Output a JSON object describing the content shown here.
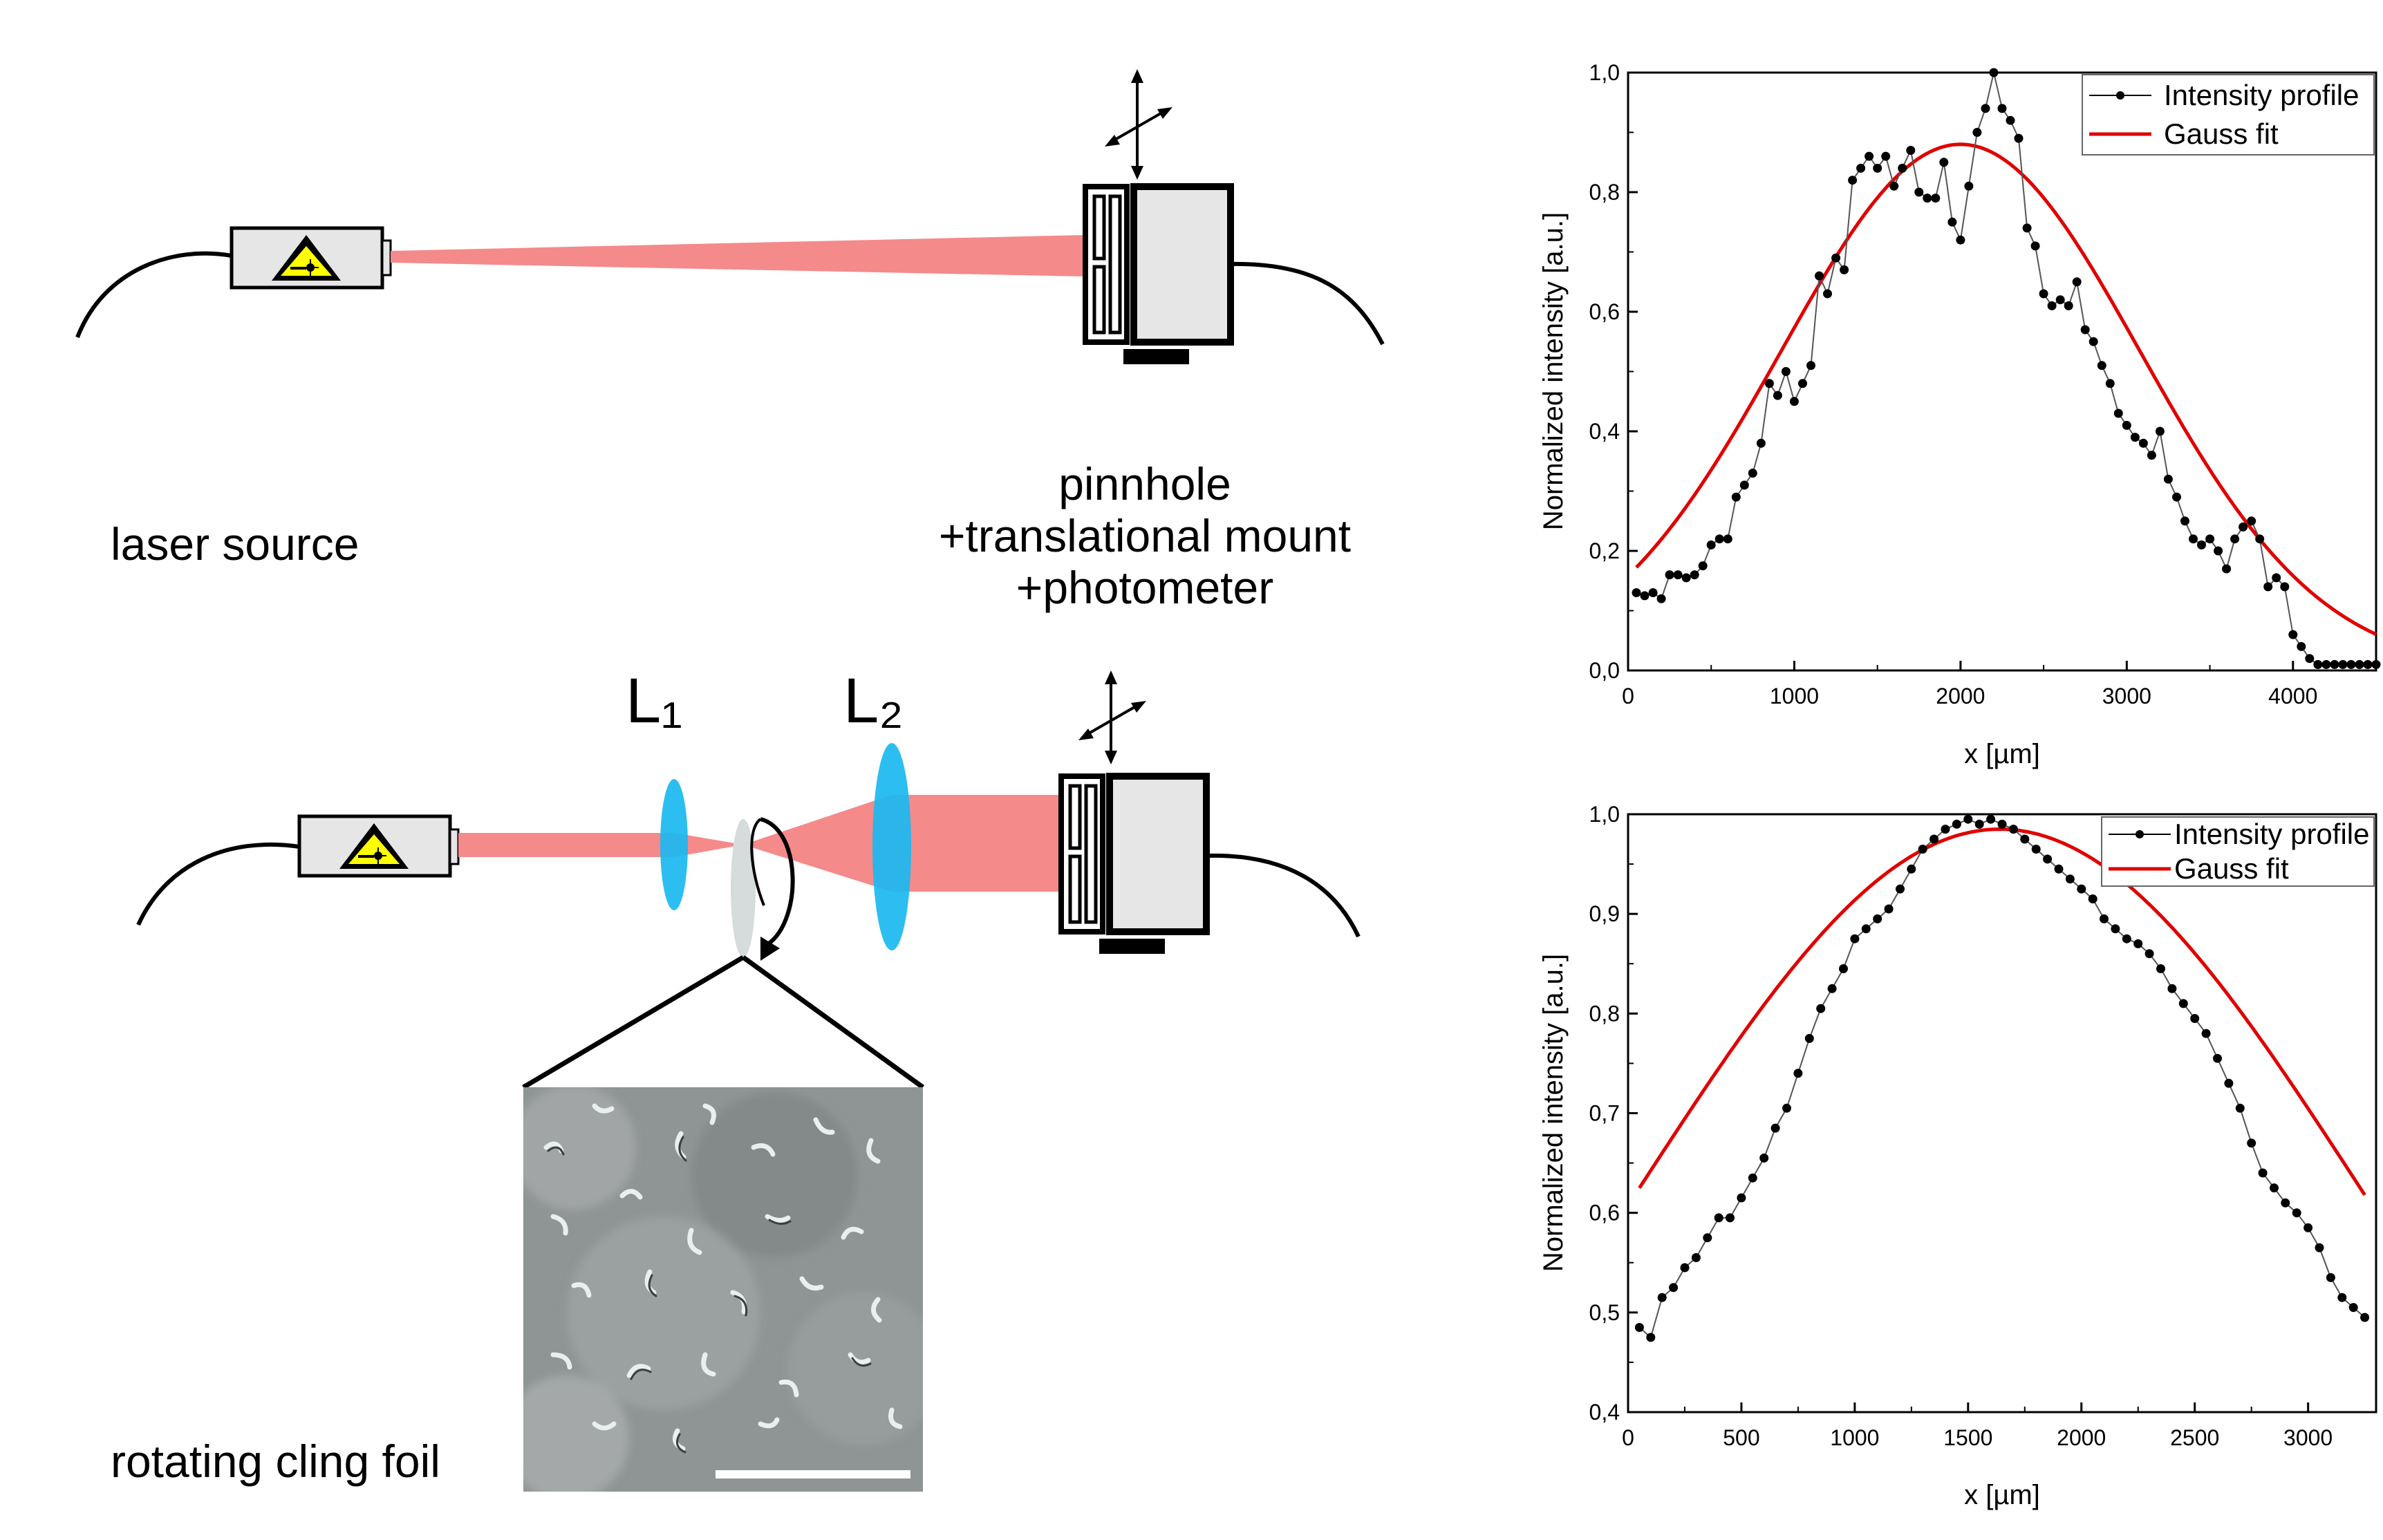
{
  "diagram": {
    "labels": {
      "laser_source": "laser source",
      "pinhole_line1": "pinnhole",
      "pinhole_line2": "+translational mount",
      "pinhole_line3": "+photometer",
      "lens1": "L₁",
      "lens2": "L₂",
      "foil": "rotating cling foil"
    },
    "colors": {
      "beam": "#f48a8a",
      "lens": "#1ab8f0",
      "laser_body": "#e6e6e6",
      "warning_yellow": "#ffff00",
      "foil": "#d6dcdc",
      "fit_red": "#e00000"
    },
    "icons": [
      "laser-warning-icon",
      "translation-arrows-icon",
      "rotation-arrow-icon"
    ]
  },
  "chart_data": [
    {
      "type": "line",
      "xlabel": "x [µm]",
      "ylabel": "Normalized intensity [a.u.]",
      "xlim": [
        0,
        4500
      ],
      "ylim": [
        0,
        1.0
      ],
      "xticks": [
        0,
        1000,
        2000,
        3000,
        4000
      ],
      "yticks": [
        0.0,
        0.2,
        0.4,
        0.6,
        0.8,
        1.0
      ],
      "ytick_labels": [
        "0,0",
        "0,2",
        "0,4",
        "0,6",
        "0,8",
        "1,0"
      ],
      "legend_position": "top-right",
      "series": [
        {
          "name": "Intensity profile",
          "style": "line-markers",
          "color": "#000000",
          "x": [
            50,
            100,
            150,
            200,
            250,
            300,
            350,
            400,
            450,
            500,
            550,
            600,
            650,
            700,
            750,
            800,
            850,
            900,
            950,
            1000,
            1050,
            1100,
            1150,
            1200,
            1250,
            1300,
            1350,
            1400,
            1450,
            1500,
            1550,
            1600,
            1650,
            1700,
            1750,
            1800,
            1850,
            1900,
            1950,
            2000,
            2050,
            2100,
            2150,
            2200,
            2250,
            2300,
            2350,
            2400,
            2450,
            2500,
            2550,
            2600,
            2650,
            2700,
            2750,
            2800,
            2850,
            2900,
            2950,
            3000,
            3050,
            3100,
            3150,
            3200,
            3250,
            3300,
            3350,
            3400,
            3450,
            3500,
            3550,
            3600,
            3650,
            3700,
            3750,
            3800,
            3850,
            3900,
            3950,
            4000,
            4050,
            4100,
            4150,
            4200,
            4250,
            4300,
            4350,
            4400,
            4450,
            4500
          ],
          "y": [
            0.13,
            0.125,
            0.13,
            0.12,
            0.16,
            0.16,
            0.155,
            0.16,
            0.175,
            0.21,
            0.22,
            0.22,
            0.29,
            0.31,
            0.33,
            0.38,
            0.48,
            0.46,
            0.5,
            0.45,
            0.48,
            0.51,
            0.66,
            0.63,
            0.69,
            0.67,
            0.82,
            0.84,
            0.86,
            0.84,
            0.86,
            0.81,
            0.84,
            0.87,
            0.8,
            0.79,
            0.79,
            0.85,
            0.75,
            0.72,
            0.81,
            0.9,
            0.94,
            1.0,
            0.94,
            0.92,
            0.89,
            0.74,
            0.71,
            0.63,
            0.61,
            0.62,
            0.61,
            0.65,
            0.57,
            0.55,
            0.51,
            0.48,
            0.43,
            0.41,
            0.39,
            0.38,
            0.36,
            0.4,
            0.32,
            0.29,
            0.25,
            0.22,
            0.21,
            0.22,
            0.2,
            0.17,
            0.22,
            0.24,
            0.25,
            0.22,
            0.14,
            0.155,
            0.14,
            0.06,
            0.04,
            0.02,
            0.01,
            0.01,
            0.01,
            0.01,
            0.01,
            0.01,
            0.01,
            0.01
          ]
        },
        {
          "name": "Gauss fit",
          "style": "line",
          "color": "#e00000",
          "gauss": {
            "amplitude": 0.88,
            "center": 2000,
            "sigma": 1080,
            "offset": 0.0
          },
          "x_range": [
            50,
            4500
          ]
        }
      ]
    },
    {
      "type": "line",
      "xlabel": "x [µm]",
      "ylabel": "Normalized intensity [a.u.]",
      "xlim": [
        0,
        3300
      ],
      "ylim": [
        0.4,
        1.0
      ],
      "xticks": [
        0,
        500,
        1000,
        1500,
        2000,
        2500,
        3000
      ],
      "yticks": [
        0.4,
        0.5,
        0.6,
        0.7,
        0.8,
        0.9,
        1.0
      ],
      "ytick_labels": [
        "0,4",
        "0,5",
        "0,6",
        "0,7",
        "0,8",
        "0,9",
        "1,0"
      ],
      "legend_position": "top-right",
      "series": [
        {
          "name": "Intensity profile",
          "style": "line-markers",
          "color": "#000000",
          "x": [
            50,
            100,
            150,
            200,
            250,
            300,
            350,
            400,
            450,
            500,
            550,
            600,
            650,
            700,
            750,
            800,
            850,
            900,
            950,
            1000,
            1050,
            1100,
            1150,
            1200,
            1250,
            1300,
            1350,
            1400,
            1450,
            1500,
            1550,
            1600,
            1650,
            1700,
            1750,
            1800,
            1850,
            1900,
            1950,
            2000,
            2050,
            2100,
            2150,
            2200,
            2250,
            2300,
            2350,
            2400,
            2450,
            2500,
            2550,
            2600,
            2650,
            2700,
            2750,
            2800,
            2850,
            2900,
            2950,
            3000,
            3050,
            3100,
            3150,
            3200,
            3250
          ],
          "y": [
            0.485,
            0.475,
            0.515,
            0.525,
            0.545,
            0.555,
            0.575,
            0.595,
            0.595,
            0.615,
            0.635,
            0.655,
            0.685,
            0.705,
            0.74,
            0.775,
            0.805,
            0.825,
            0.845,
            0.875,
            0.885,
            0.895,
            0.905,
            0.925,
            0.945,
            0.965,
            0.975,
            0.985,
            0.99,
            0.995,
            0.99,
            0.995,
            0.99,
            0.985,
            0.975,
            0.965,
            0.955,
            0.945,
            0.935,
            0.925,
            0.915,
            0.895,
            0.885,
            0.875,
            0.87,
            0.86,
            0.845,
            0.825,
            0.81,
            0.795,
            0.78,
            0.755,
            0.73,
            0.705,
            0.67,
            0.64,
            0.625,
            0.61,
            0.6,
            0.585,
            0.565,
            0.535,
            0.515,
            0.505,
            0.495
          ]
        },
        {
          "name": "Gauss fit",
          "style": "line",
          "color": "#e00000",
          "gauss": {
            "amplitude": 0.915,
            "center": 1640,
            "sigma": 1590,
            "offset": 0.07
          },
          "x_range": [
            50,
            3250
          ]
        }
      ]
    }
  ]
}
